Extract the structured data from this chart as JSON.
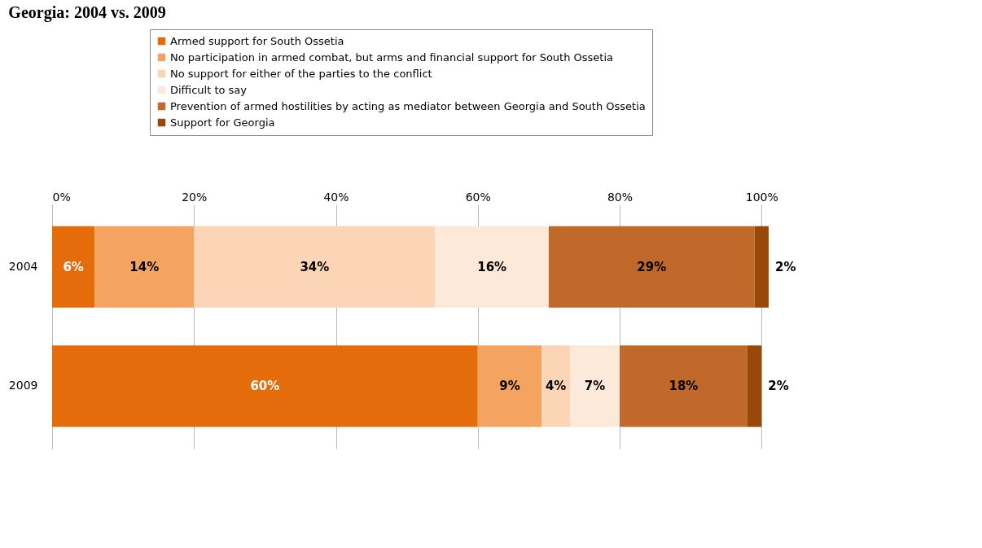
{
  "chart_data": {
    "type": "bar",
    "orientation": "horizontal",
    "stacked": true,
    "title": "Georgia: 2004 vs. 2009",
    "categories": [
      "2004",
      "2009"
    ],
    "series": [
      {
        "name": "Armed support for South Ossetia",
        "color": "#e46c0a",
        "values": [
          6,
          60
        ],
        "value_labels": [
          "6%",
          "60%"
        ]
      },
      {
        "name": "No participation in armed combat, but arms and financial support for South Ossetia",
        "color": "#f4a460",
        "values": [
          14,
          9
        ],
        "value_labels": [
          "14%",
          "9%"
        ]
      },
      {
        "name": "No support for either of the parties to the conflict",
        "color": "#fbd5b5",
        "values": [
          34,
          4
        ],
        "value_labels": [
          "34%",
          "4%"
        ]
      },
      {
        "name": "Difficult to say",
        "color": "#fde9d9",
        "values": [
          16,
          7
        ],
        "value_labels": [
          "16%",
          "7%"
        ]
      },
      {
        "name": "Prevention of armed hostilities by acting as mediator between Georgia and South Ossetia",
        "color": "#c0692a",
        "values": [
          29,
          18
        ],
        "value_labels": [
          "29%",
          "18%"
        ]
      },
      {
        "name": "Support for Georgia",
        "color": "#984807",
        "values": [
          2,
          2
        ],
        "value_labels": [
          "2%",
          "2%"
        ]
      }
    ],
    "xlim": [
      0,
      101
    ],
    "xticks": [
      {
        "value": 0,
        "label": "0%"
      },
      {
        "value": 20,
        "label": "20%"
      },
      {
        "value": 40,
        "label": "40%"
      },
      {
        "value": 60,
        "label": "60%"
      },
      {
        "value": 80,
        "label": "80%"
      },
      {
        "value": 100,
        "label": "100%"
      }
    ],
    "grid": "x",
    "legend": "top"
  }
}
